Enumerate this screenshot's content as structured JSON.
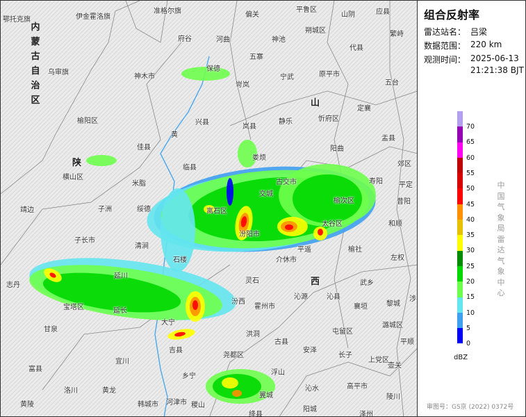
{
  "panel": {
    "title": "组合反射率",
    "station_label": "雷达站名：",
    "station": "吕梁",
    "range_label": "数据范围：",
    "range": "220 km",
    "time_label": "观测时间：",
    "date": "2025-06-13",
    "time": "21:21:38 BJT",
    "unit": "dBZ",
    "watermark": "中国气象局雷达气象中心",
    "credit": "审图号：GS京 (2022) 0372号"
  },
  "legend": {
    "colors": [
      "#b49ef0",
      "#9600b4",
      "#ff00f0",
      "#c00000",
      "#d60000",
      "#ff0000",
      "#ff9000",
      "#e7c000",
      "#ffff00",
      "#008c00",
      "#00d800",
      "#6eff4c",
      "#64e6ee",
      "#40a0f0",
      "#0000f6"
    ],
    "ticks": [
      "70",
      "65",
      "60",
      "55",
      "50",
      "45",
      "40",
      "35",
      "30",
      "25",
      "20",
      "15",
      "10",
      "5",
      "0"
    ]
  },
  "map": {
    "region_label": "内蒙古自治区",
    "labels": [
      "鄂托克旗",
      "伊金霍洛旗",
      "准格尔旗",
      "府谷",
      "乌审旗",
      "神木市",
      "榆阳区",
      "佳县",
      "陕",
      "横山区",
      "米脂",
      "临县",
      "兴县",
      "偏关",
      "平鲁区",
      "山阴",
      "应县",
      "河曲",
      "神池",
      "朔城区",
      "繁峙",
      "五寨",
      "代县",
      "保德",
      "宁武",
      "原平市",
      "五台",
      "岢岚",
      "山",
      "定襄",
      "岚县",
      "静乐",
      "忻府区",
      "盂县",
      "阳曲",
      "娄烦",
      "古交市",
      "寿阳",
      "交城",
      "榆次区",
      "昔阳",
      "平定",
      "郊区",
      "和顺",
      "太谷区",
      "清涧",
      "子长市",
      "延川",
      "石楼",
      "志丹",
      "宝塔区",
      "延长",
      "大宁",
      "甘泉",
      "吉县",
      "宜川",
      "富县",
      "乡宁",
      "洛川",
      "黄龙",
      "黄陵",
      "韩城市",
      "河津市",
      "稷山",
      "榆社",
      "左权",
      "武乡",
      "西",
      "沁源",
      "沁县",
      "襄垣",
      "黎城",
      "涉县",
      "汾西",
      "霍州市",
      "洪洞",
      "古县",
      "安泽",
      "屯留区",
      "潞城区",
      "平顺",
      "长子",
      "上党区",
      "壶关",
      "尧都区",
      "浮山",
      "沁水",
      "高平市",
      "翼城",
      "陵川",
      "阳城",
      "泽州",
      "绛县",
      "灵石",
      "平遥",
      "汾阳市",
      "子洲",
      "绥德",
      "靖边",
      "黄",
      "介休市",
      "离石区"
    ]
  }
}
